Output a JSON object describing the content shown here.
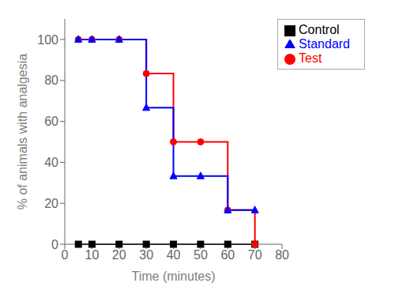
{
  "chart_data": {
    "type": "line",
    "xlabel": "Time (minutes)",
    "ylabel": "% of animals with analgesia",
    "x": [
      5,
      10,
      20,
      30,
      40,
      50,
      60,
      70
    ],
    "series": [
      {
        "name": "Control",
        "color": "#000000",
        "marker": "square",
        "values": [
          0,
          0,
          0,
          0,
          0,
          0,
          0,
          0
        ]
      },
      {
        "name": "Test",
        "color": "#ff0000",
        "marker": "circle",
        "values": [
          100,
          100,
          100,
          83.33,
          50,
          50,
          16.67,
          0
        ]
      },
      {
        "name": "Standard",
        "color": "#0000ff",
        "marker": "triangle",
        "values": [
          100,
          100,
          100,
          66.67,
          33.33,
          33.33,
          16.67,
          16.67
        ]
      }
    ],
    "xlim": [
      0,
      80
    ],
    "ylim": [
      0,
      110
    ],
    "xticks": [
      0,
      10,
      20,
      30,
      40,
      50,
      60,
      70,
      80
    ],
    "yticks": [
      0,
      20,
      40,
      60,
      80,
      100
    ],
    "legend": "upper right",
    "line_style": "steps",
    "grid": false
  }
}
